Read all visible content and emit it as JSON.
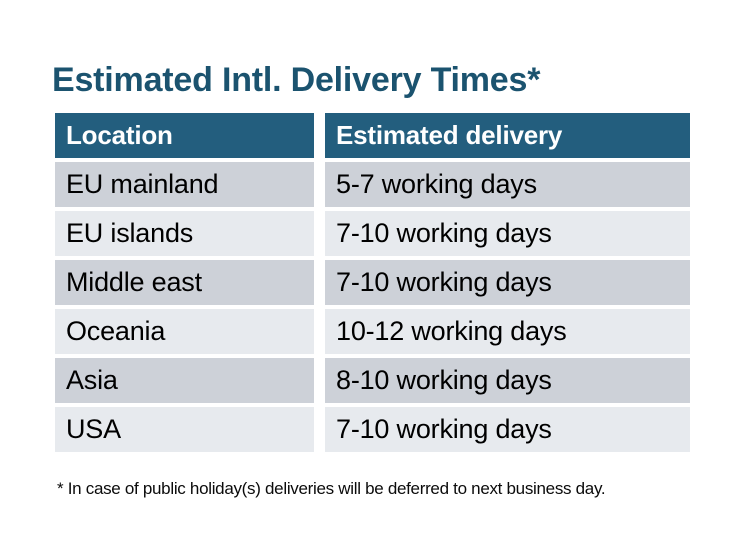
{
  "chart_data": {
    "type": "table",
    "title": "Estimated Intl. Delivery Times*",
    "columns": [
      "Location",
      "Estimated delivery"
    ],
    "rows": [
      [
        "EU mainland",
        "5-7 working days"
      ],
      [
        "EU islands",
        "7-10 working days"
      ],
      [
        "Middle east",
        "7-10 working days"
      ],
      [
        "Oceania",
        "10-12 working days"
      ],
      [
        "Asia",
        "8-10 working days"
      ],
      [
        "USA",
        "7-10 working days"
      ]
    ],
    "footnote": "* In case of public holiday(s) deliveries will be deferred to next business day.",
    "layout_hints": {
      "header_style": "solid teal bar, white bold text",
      "row_striping": "alternating gray rows with white gutters between cells",
      "grid": "off"
    }
  },
  "colors": {
    "title_color": "#1B536F",
    "header_bg": "#235E7E",
    "header_text": "#FFFFFF",
    "row_odd_bg": "#CDD1D8",
    "row_even_bg": "#E7EAEE",
    "body_text": "#000000",
    "page_bg": "#FFFFFF"
  }
}
